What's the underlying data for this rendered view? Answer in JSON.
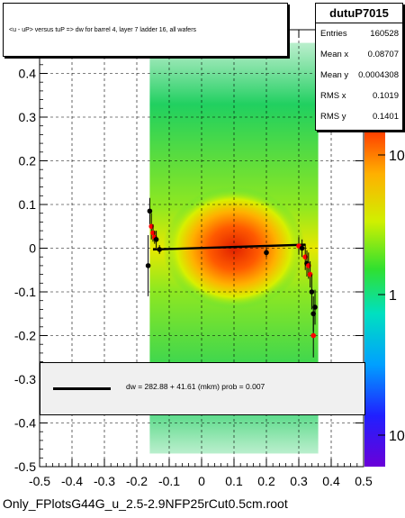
{
  "chart_data": {
    "type": "scatter",
    "title": "<u - uP>       versus  tuP =>  dw for barrel 4, layer 7 ladder 16, all wafers",
    "histogram_name": "dutuP7015",
    "stats": [
      {
        "label": "Entries",
        "value": "160528"
      },
      {
        "label": "Mean x",
        "value": "0.08707"
      },
      {
        "label": "Mean y",
        "value": "0.0004308"
      },
      {
        "label": "RMS x",
        "value": "0.1019"
      },
      {
        "label": "RMS y",
        "value": "0.1401"
      }
    ],
    "xlim": [
      -0.5,
      0.5
    ],
    "ylim": [
      -0.5,
      0.5
    ],
    "x_ticks": [
      "-0.5",
      "-0.4",
      "-0.3",
      "-0.2",
      "-0.1",
      "0",
      "0.1",
      "0.2",
      "0.3",
      "0.4",
      "0.5"
    ],
    "y_ticks": [
      "-0.5",
      "-0.4",
      "-0.3",
      "-0.2",
      "-0.1",
      "0",
      "0.1",
      "0.2",
      "0.3",
      "0.4"
    ],
    "z_scale": "log",
    "z_tick_labels": [
      "10",
      "1",
      "10"
    ],
    "grid": true,
    "fit_label": "dw =  282.88 + 41.61 (mkm) prob = 0.007",
    "fit_line": {
      "x": [
        -0.15,
        0.32
      ],
      "y": [
        -0.003,
        0.008
      ]
    },
    "profile_points": [
      {
        "x": -0.165,
        "y": -0.04,
        "err": 0.07,
        "color": "black"
      },
      {
        "x": -0.16,
        "y": 0.085,
        "err": 0.03,
        "color": "black"
      },
      {
        "x": -0.155,
        "y": 0.05,
        "err": 0.03,
        "color": "red"
      },
      {
        "x": -0.15,
        "y": 0.035,
        "err": 0.02,
        "color": "red"
      },
      {
        "x": -0.145,
        "y": 0.025,
        "err": 0.015,
        "color": "red"
      },
      {
        "x": -0.14,
        "y": 0.02,
        "err": 0.02,
        "color": "black"
      },
      {
        "x": -0.13,
        "y": -0.003,
        "err": 0.01,
        "color": "black"
      },
      {
        "x": 0.2,
        "y": -0.01,
        "err": 0.01,
        "color": "black"
      },
      {
        "x": 0.3,
        "y": 0.005,
        "err": 0.02,
        "color": "red"
      },
      {
        "x": 0.31,
        "y": 0.0,
        "err": 0.02,
        "color": "black"
      },
      {
        "x": 0.32,
        "y": -0.02,
        "err": 0.03,
        "color": "red"
      },
      {
        "x": 0.325,
        "y": -0.035,
        "err": 0.03,
        "color": "black"
      },
      {
        "x": 0.33,
        "y": -0.04,
        "err": 0.03,
        "color": "red"
      },
      {
        "x": 0.335,
        "y": -0.06,
        "err": 0.03,
        "color": "red"
      },
      {
        "x": 0.34,
        "y": -0.1,
        "err": 0.04,
        "color": "black"
      },
      {
        "x": 0.345,
        "y": -0.15,
        "err": 0.04,
        "color": "black"
      },
      {
        "x": 0.35,
        "y": -0.135,
        "err": 0.04,
        "color": "black"
      },
      {
        "x": 0.345,
        "y": -0.2,
        "err": 0.05,
        "color": "red"
      }
    ]
  },
  "footer": "Only_FPlotsG44G_u_2.5-2.9NFP25rCut0.5cm.root"
}
